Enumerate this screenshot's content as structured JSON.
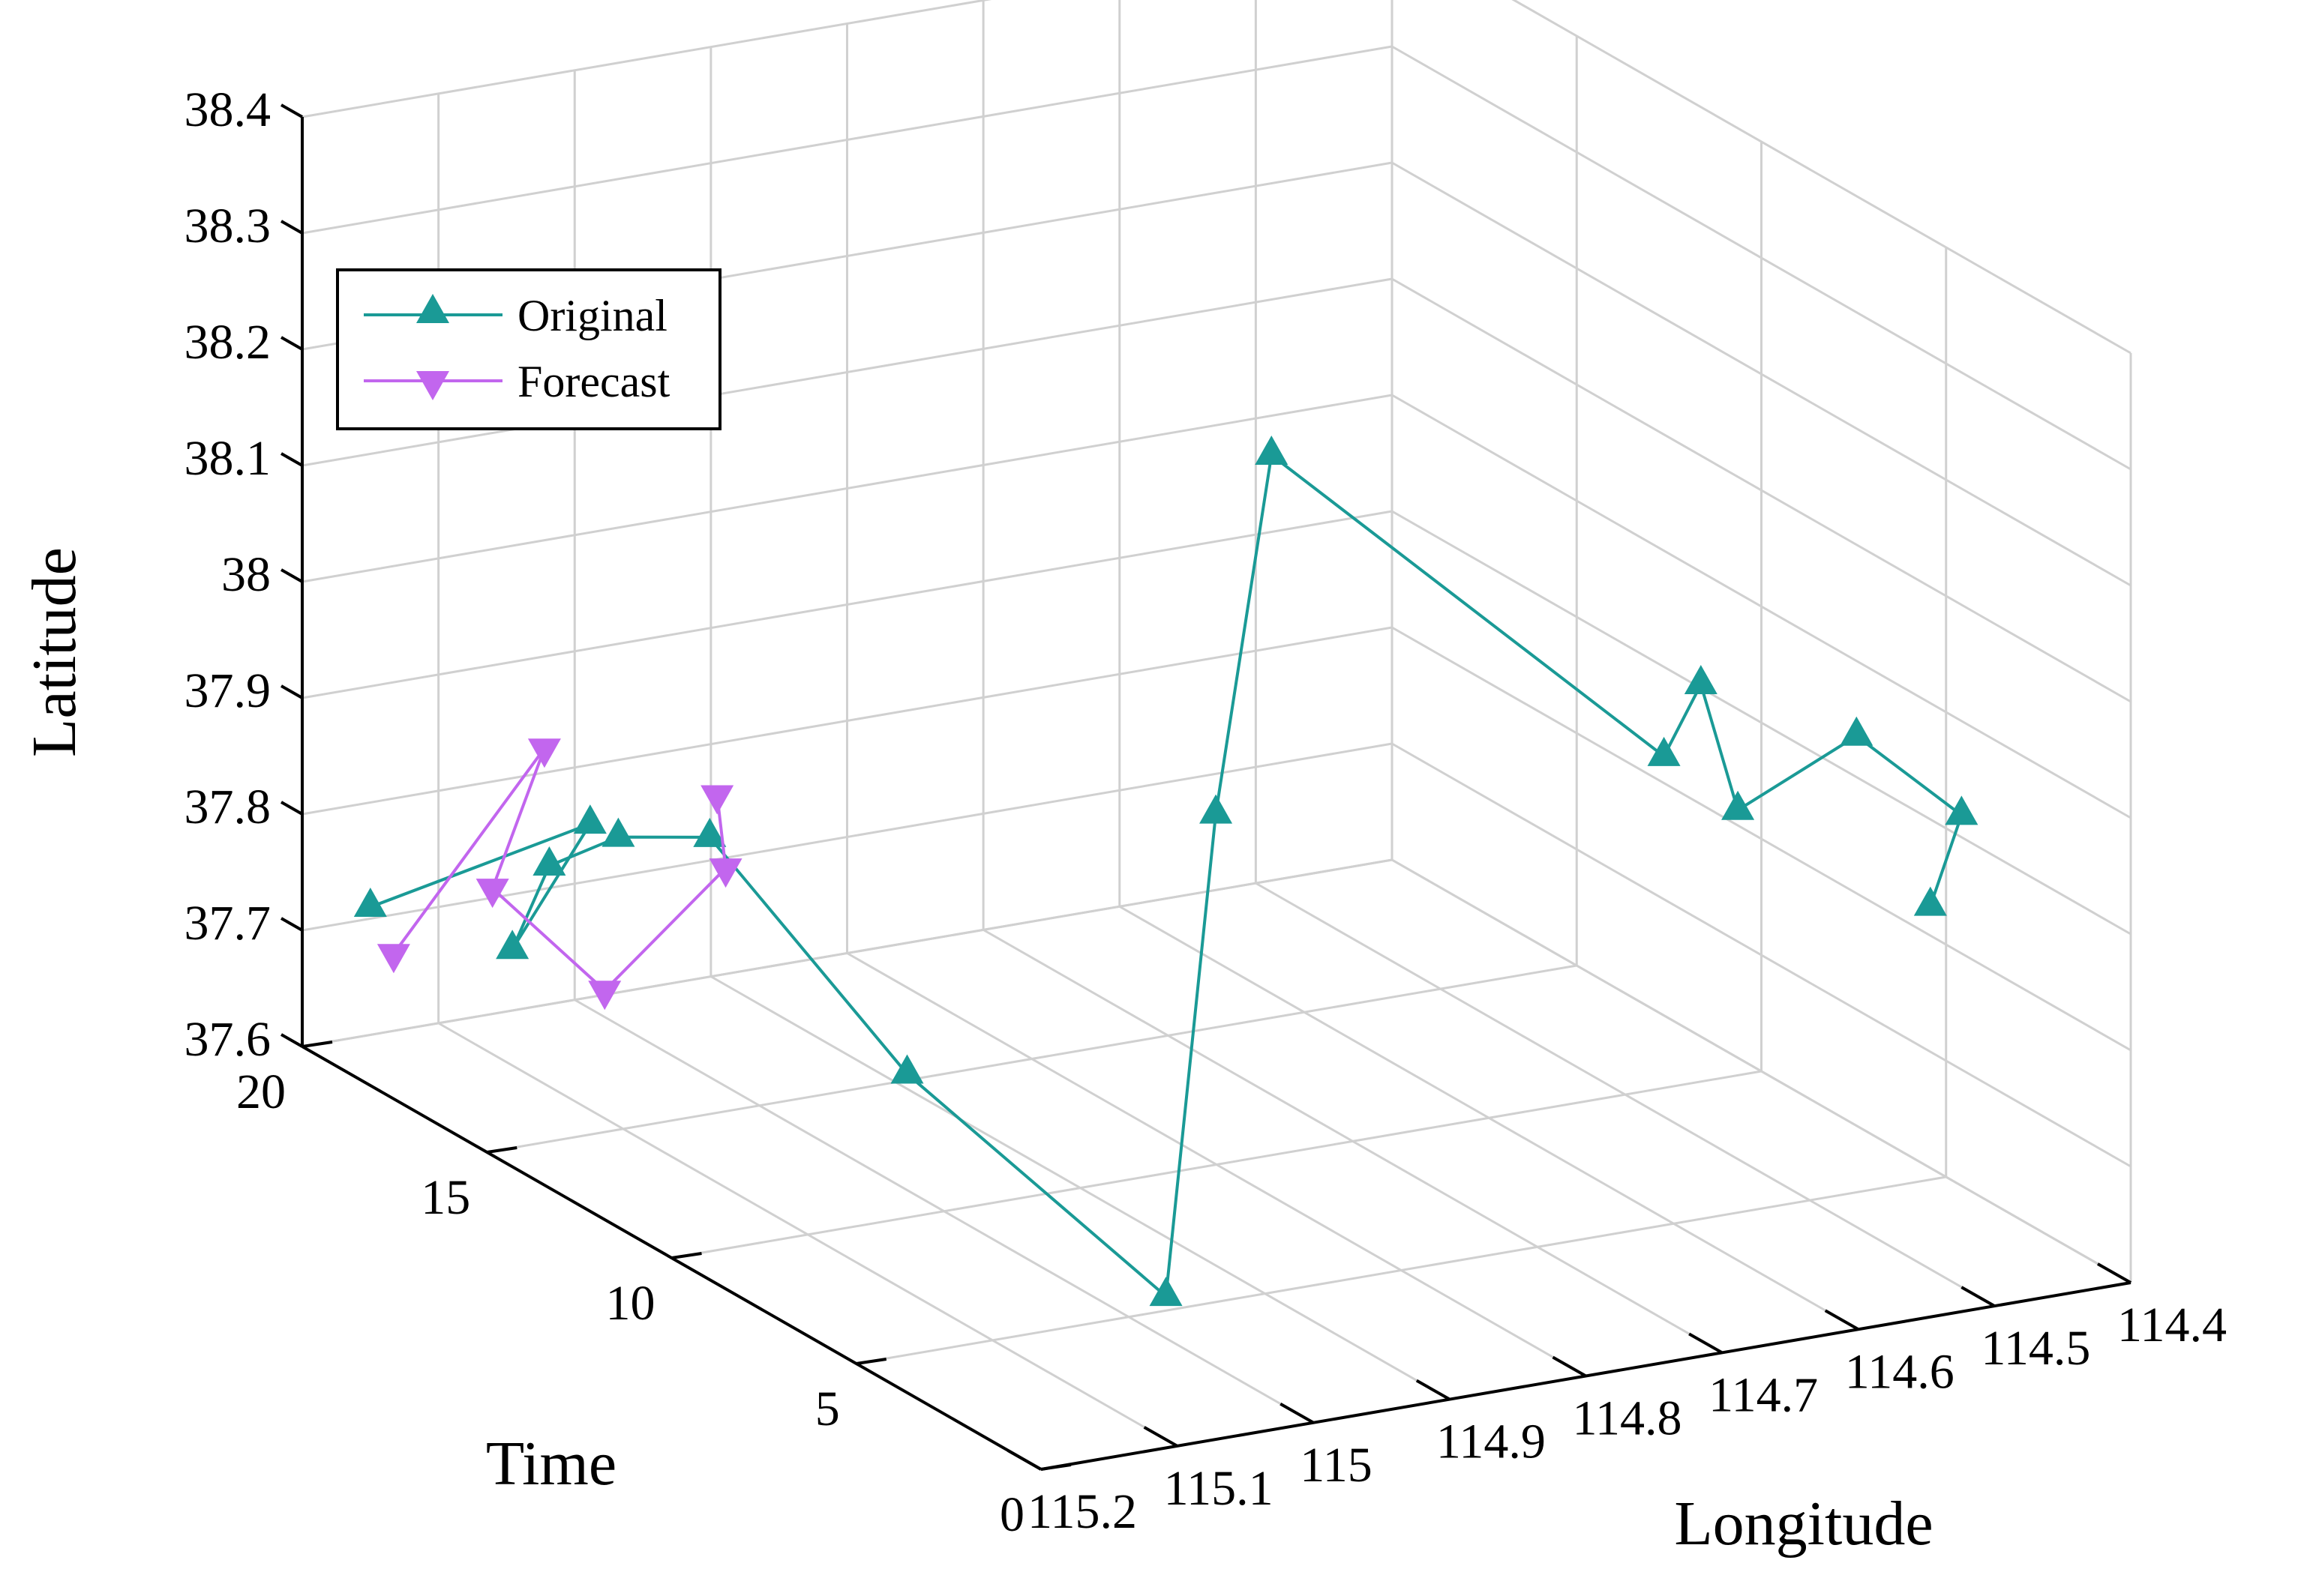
{
  "chart_data": {
    "type": "line3d",
    "title": "",
    "xlabel": "Longitude",
    "ylabel": "Time",
    "zlabel": "Latitude",
    "xlim": [
      114.4,
      115.2
    ],
    "ylim": [
      0,
      20
    ],
    "zlim": [
      37.6,
      38.4
    ],
    "grid": true,
    "legend_position": "top-left",
    "x_ticks": [
      {
        "value": 115.2,
        "label": "115.2"
      },
      {
        "value": 115.1,
        "label": "115.1"
      },
      {
        "value": 115.0,
        "label": "115"
      },
      {
        "value": 114.9,
        "label": "114.9"
      },
      {
        "value": 114.8,
        "label": "114.8"
      },
      {
        "value": 114.7,
        "label": "114.7"
      },
      {
        "value": 114.6,
        "label": "114.6"
      },
      {
        "value": 114.5,
        "label": "114.5"
      },
      {
        "value": 114.4,
        "label": "114.4"
      }
    ],
    "y_ticks": [
      {
        "value": 0,
        "label": "0"
      },
      {
        "value": 5,
        "label": "5"
      },
      {
        "value": 10,
        "label": "10"
      },
      {
        "value": 15,
        "label": "15"
      },
      {
        "value": 20,
        "label": "20"
      }
    ],
    "z_ticks": [
      {
        "value": 37.6,
        "label": "37.6"
      },
      {
        "value": 37.7,
        "label": "37.7"
      },
      {
        "value": 37.8,
        "label": "37.8"
      },
      {
        "value": 37.9,
        "label": "37.9"
      },
      {
        "value": 38.0,
        "label": "38"
      },
      {
        "value": 38.1,
        "label": "38.1"
      },
      {
        "value": 38.2,
        "label": "38.2"
      },
      {
        "value": 38.3,
        "label": "38.3"
      },
      {
        "value": 38.4,
        "label": "38.4"
      }
    ],
    "series": [
      {
        "name": "Original",
        "color": "#1a9a96",
        "marker": "triangle-up",
        "points": [
          {
            "x": 114.52,
            "y": 1,
            "z": 37.93
          },
          {
            "x": 114.47,
            "y": 2,
            "z": 37.98
          },
          {
            "x": 114.52,
            "y": 3,
            "z": 38.04
          },
          {
            "x": 114.58,
            "y": 4,
            "z": 37.97
          },
          {
            "x": 114.58,
            "y": 5,
            "z": 38.06
          },
          {
            "x": 114.58,
            "y": 6,
            "z": 37.98
          },
          {
            "x": 114.86,
            "y": 6.3,
            "z": 38.29
          },
          {
            "x": 114.89,
            "y": 6.7,
            "z": 37.98
          },
          {
            "x": 114.97,
            "y": 5.1,
            "z": 37.61
          },
          {
            "x": 115.0,
            "y": 11,
            "z": 37.7
          },
          {
            "x": 115.05,
            "y": 14.5,
            "z": 37.85
          },
          {
            "x": 115.09,
            "y": 15.5,
            "z": 37.84
          },
          {
            "x": 115.1,
            "y": 17,
            "z": 37.79
          },
          {
            "x": 115.1,
            "y": 18,
            "z": 37.7
          },
          {
            "x": 115.07,
            "y": 17,
            "z": 37.82
          },
          {
            "x": 115.15,
            "y": 20,
            "z": 37.71
          }
        ]
      },
      {
        "name": "Forecast",
        "color": "#c266ee",
        "marker": "triangle-down",
        "points": [
          {
            "x": 115.05,
            "y": 14.3,
            "z": 37.89
          },
          {
            "x": 115.06,
            "y": 13.7,
            "z": 37.84
          },
          {
            "x": 115.1,
            "y": 15.5,
            "z": 37.71
          },
          {
            "x": 115.12,
            "y": 17.8,
            "z": 37.76
          },
          {
            "x": 115.09,
            "y": 17.5,
            "z": 37.88
          },
          {
            "x": 115.16,
            "y": 19,
            "z": 37.69
          }
        ]
      }
    ]
  }
}
